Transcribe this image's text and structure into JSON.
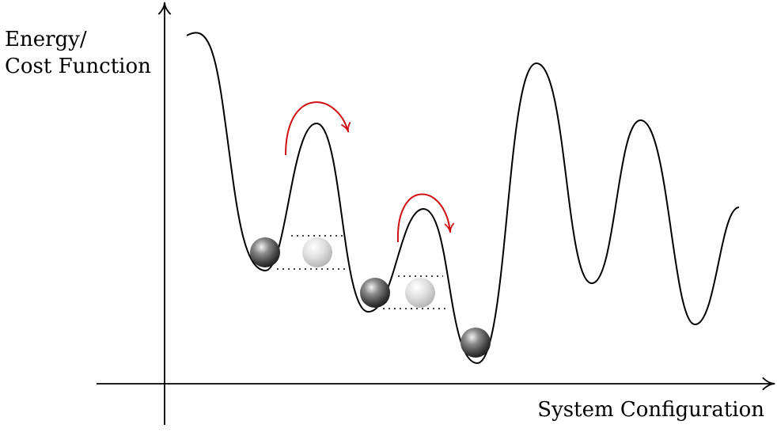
{
  "axes": {
    "y_label_line1": "Energy/",
    "y_label_line2": "Cost Function",
    "x_label": "System Configuration"
  },
  "colors": {
    "curve": "#000000",
    "transition_arrow": "#d01010",
    "ball_dark": "#555555",
    "ball_light": "#d9d9d9",
    "level_line": "#000000"
  },
  "balls": [
    {
      "shade": "dark"
    },
    {
      "shade": "light"
    },
    {
      "shade": "dark"
    },
    {
      "shade": "light"
    },
    {
      "shade": "dark"
    }
  ],
  "transition_arrows": 2,
  "energy_levels": 4
}
